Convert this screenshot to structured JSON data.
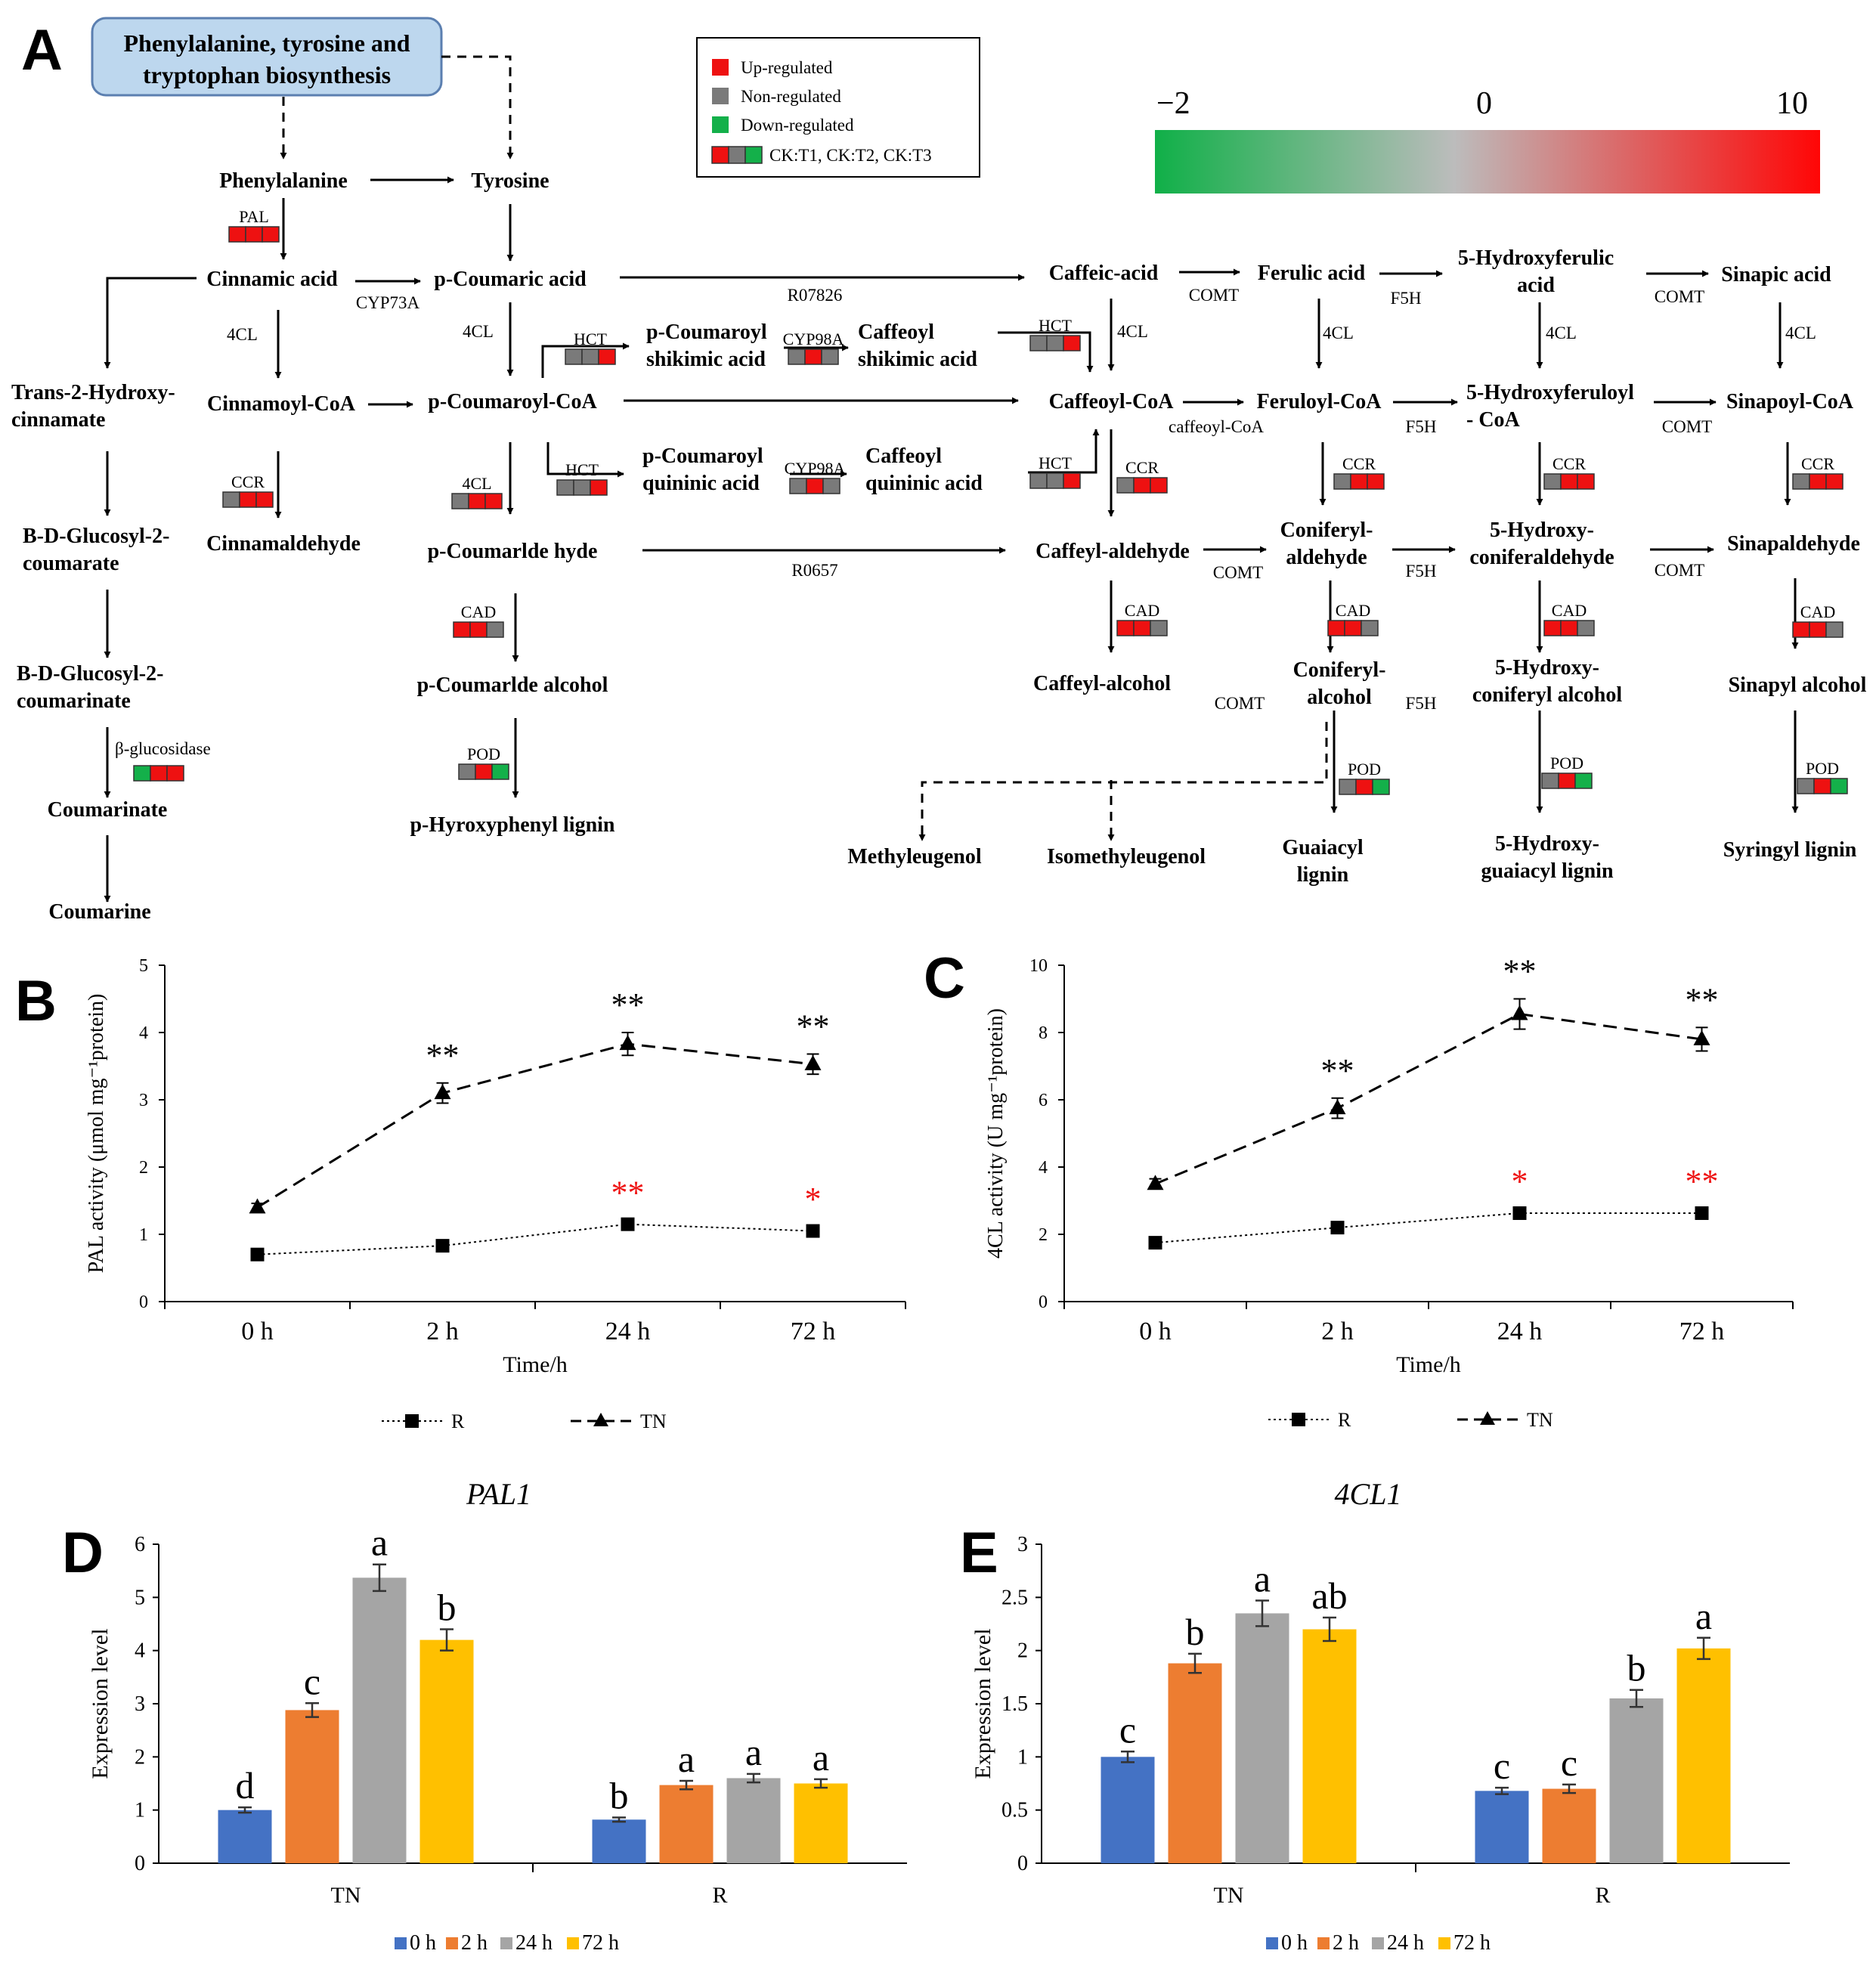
{
  "colors": {
    "up": "#ee1111",
    "non": "#7a7a7a",
    "down": "#14b04a",
    "box_fill": "#bdd7ee",
    "box_stroke": "#5b7fb0",
    "blue": "#4472c4",
    "orange": "#ed7d31",
    "gray": "#a5a5a5",
    "yellow": "#ffc000"
  },
  "panelA": {
    "letter": "A",
    "start_box": [
      "Phenylalanine, tyrosine and",
      "tryptophan biosynthesis"
    ],
    "legend": {
      "up": "Up-regulated",
      "non": "Non-regulated",
      "down": "Down-regulated",
      "triple": "CK:T1, CK:T2, CK:T3"
    },
    "scale": {
      "min": "−2",
      "mid": "0",
      "max": "10"
    },
    "compounds": [
      {
        "id": "phe",
        "lines": [
          "Phenylalanine"
        ]
      },
      {
        "id": "tyr",
        "lines": [
          "Tyrosine"
        ]
      },
      {
        "id": "cin",
        "lines": [
          "Cinnamic acid"
        ]
      },
      {
        "id": "pca",
        "lines": [
          "p-Coumaric acid"
        ]
      },
      {
        "id": "caf",
        "lines": [
          "Caffeic-acid"
        ]
      },
      {
        "id": "fer",
        "lines": [
          "Ferulic acid"
        ]
      },
      {
        "id": "hfer",
        "lines": [
          "5-Hydroxyferulic",
          "acid"
        ]
      },
      {
        "id": "sin",
        "lines": [
          "Sinapic acid"
        ]
      },
      {
        "id": "t2h",
        "lines": [
          "Trans-2-Hydroxy-",
          "cinnamate"
        ]
      },
      {
        "id": "cincoa",
        "lines": [
          "Cinnamoyl-CoA"
        ]
      },
      {
        "id": "pcoa",
        "lines": [
          "p-Coumaroyl-CoA"
        ]
      },
      {
        "id": "pcsa",
        "lines": [
          "p-Coumaroyl",
          "shikimic acid"
        ]
      },
      {
        "id": "cfsa",
        "lines": [
          "Caffeoyl",
          "shikimic acid"
        ]
      },
      {
        "id": "cfcoa",
        "lines": [
          "Caffeoyl-CoA"
        ]
      },
      {
        "id": "fercoa",
        "lines": [
          "Feruloyl-CoA"
        ]
      },
      {
        "id": "hfcoa",
        "lines": [
          "5-Hydroxyferuloyl",
          "- CoA"
        ]
      },
      {
        "id": "sincoa",
        "lines": [
          "Sinapoyl-CoA"
        ]
      },
      {
        "id": "bdg1",
        "lines": [
          "B-D-Glucosyl-2-",
          "coumarate"
        ]
      },
      {
        "id": "cinald",
        "lines": [
          "Cinnamaldehyde"
        ]
      },
      {
        "id": "pcqa",
        "lines": [
          "p-Coumaroyl",
          "quininic acid"
        ]
      },
      {
        "id": "cfqa",
        "lines": [
          "Caffeoyl",
          "quininic acid"
        ]
      },
      {
        "id": "pcald",
        "lines": [
          "p-Coumarlde hyde"
        ]
      },
      {
        "id": "cfald",
        "lines": [
          "Caffeyl-aldehyde"
        ]
      },
      {
        "id": "conald",
        "lines": [
          "Coniferyl-",
          "aldehyde"
        ]
      },
      {
        "id": "hconald",
        "lines": [
          "5-Hydroxy-",
          "coniferaldehyde"
        ]
      },
      {
        "id": "sinald",
        "lines": [
          "Sinapaldehyde"
        ]
      },
      {
        "id": "bdg2",
        "lines": [
          "B-D-Glucosyl-2-",
          "coumarinate"
        ]
      },
      {
        "id": "pcalc",
        "lines": [
          "p-Coumarlde alcohol"
        ]
      },
      {
        "id": "cfalc",
        "lines": [
          "Caffeyl-alcohol"
        ]
      },
      {
        "id": "conalc",
        "lines": [
          "Coniferyl-",
          "alcohol"
        ]
      },
      {
        "id": "hconalc",
        "lines": [
          "5-Hydroxy-",
          "coniferyl alcohol"
        ]
      },
      {
        "id": "sinalc",
        "lines": [
          "Sinapyl alcohol"
        ]
      },
      {
        "id": "coumt",
        "lines": [
          "Coumarinate"
        ]
      },
      {
        "id": "phlig",
        "lines": [
          "p-Hyroxyphenyl lignin"
        ]
      },
      {
        "id": "meth",
        "lines": [
          "Methyleugenol"
        ]
      },
      {
        "id": "isom",
        "lines": [
          "Isomethyleugenol"
        ]
      },
      {
        "id": "gualig",
        "lines": [
          "Guaiacyl",
          "lignin"
        ]
      },
      {
        "id": "hgualig",
        "lines": [
          "5-Hydroxy-",
          "guaiacyl lignin"
        ]
      },
      {
        "id": "syrlig",
        "lines": [
          "Syringyl lignin"
        ]
      },
      {
        "id": "coum",
        "lines": [
          "Coumarine"
        ]
      }
    ],
    "enzymes": [
      {
        "id": "e1",
        "t": "CYP73A"
      },
      {
        "id": "e2",
        "t": "R07826"
      },
      {
        "id": "e3",
        "t": "COMT"
      },
      {
        "id": "e4",
        "t": "F5H"
      },
      {
        "id": "e5",
        "t": "COMT"
      },
      {
        "id": "e6",
        "t": "4CL"
      },
      {
        "id": "e7",
        "t": "4CL"
      },
      {
        "id": "e8",
        "t": "4CL"
      },
      {
        "id": "e9",
        "t": "4CL"
      },
      {
        "id": "e10",
        "t": "4CL"
      },
      {
        "id": "e11",
        "t": "4CL"
      },
      {
        "id": "e12",
        "t": "caffeoyl-CoA"
      },
      {
        "id": "e13",
        "t": "F5H"
      },
      {
        "id": "e14",
        "t": "COMT"
      },
      {
        "id": "e15",
        "t": "R0657"
      },
      {
        "id": "e16",
        "t": "COMT"
      },
      {
        "id": "e17",
        "t": "F5H"
      },
      {
        "id": "e18",
        "t": "COMT"
      },
      {
        "id": "e19",
        "t": "COMT"
      },
      {
        "id": "e20",
        "t": "F5H"
      },
      {
        "id": "e21",
        "t": "β-glucosidase"
      }
    ],
    "gene_boxes": [
      {
        "id": "g1",
        "label": "PAL",
        "cells": [
          "up",
          "up",
          "up"
        ]
      },
      {
        "id": "g2",
        "label": "HCT",
        "cells": [
          "non",
          "non",
          "up"
        ]
      },
      {
        "id": "g3",
        "label": "CYP98A",
        "cells": [
          "non",
          "up",
          "non"
        ]
      },
      {
        "id": "g4",
        "label": "HCT",
        "cells": [
          "non",
          "non",
          "up"
        ]
      },
      {
        "id": "g5",
        "label": "HCT",
        "cells": [
          "non",
          "non",
          "up"
        ]
      },
      {
        "id": "g6",
        "label": "CYP98A",
        "cells": [
          "non",
          "up",
          "non"
        ]
      },
      {
        "id": "g7",
        "label": "HCT",
        "cells": [
          "non",
          "non",
          "up"
        ]
      },
      {
        "id": "g8",
        "label": "CCR",
        "cells": [
          "non",
          "up",
          "up"
        ]
      },
      {
        "id": "g9",
        "label": "4CL",
        "cells": [
          "non",
          "up",
          "up"
        ]
      },
      {
        "id": "g10",
        "label": "CCR",
        "cells": [
          "non",
          "up",
          "up"
        ]
      },
      {
        "id": "g11",
        "label": "CCR",
        "cells": [
          "non",
          "up",
          "up"
        ]
      },
      {
        "id": "g12",
        "label": "CCR",
        "cells": [
          "non",
          "up",
          "up"
        ]
      },
      {
        "id": "g13",
        "label": "CCR",
        "cells": [
          "non",
          "up",
          "up"
        ]
      },
      {
        "id": "g14",
        "label": "CAD",
        "cells": [
          "up",
          "up",
          "non"
        ]
      },
      {
        "id": "g15",
        "label": "CAD",
        "cells": [
          "up",
          "up",
          "non"
        ]
      },
      {
        "id": "g16",
        "label": "CAD",
        "cells": [
          "up",
          "up",
          "non"
        ]
      },
      {
        "id": "g17",
        "label": "CAD",
        "cells": [
          "up",
          "up",
          "non"
        ]
      },
      {
        "id": "g18",
        "label": "CAD",
        "cells": [
          "up",
          "up",
          "non"
        ]
      },
      {
        "id": "g19",
        "label": "β-glucosidase",
        "cells": [
          "down",
          "up",
          "up"
        ],
        "nolabel": true
      },
      {
        "id": "g20",
        "label": "POD",
        "cells": [
          "non",
          "up",
          "down"
        ]
      },
      {
        "id": "g21",
        "label": "POD",
        "cells": [
          "non",
          "up",
          "down"
        ]
      },
      {
        "id": "g22",
        "label": "POD",
        "cells": [
          "non",
          "up",
          "down"
        ]
      },
      {
        "id": "g23",
        "label": "POD",
        "cells": [
          "non",
          "up",
          "down"
        ]
      }
    ]
  },
  "panelB": {
    "letter": "B",
    "chart_data": {
      "type": "line",
      "categories": [
        "0 h",
        "2 h",
        "24 h",
        "72 h"
      ],
      "series": [
        {
          "name": "R",
          "values": [
            0.7,
            0.83,
            1.15,
            1.05
          ],
          "errors": [
            0.05,
            0.05,
            0.06,
            0.06
          ],
          "marks": [
            "",
            "",
            "**",
            "*"
          ]
        },
        {
          "name": "TN",
          "values": [
            1.4,
            3.1,
            3.83,
            3.53
          ],
          "errors": [
            0.06,
            0.15,
            0.17,
            0.15
          ],
          "marks": [
            "",
            "**",
            "**",
            "**"
          ]
        }
      ],
      "ylim": [
        0,
        5
      ],
      "yticks": [
        "0",
        "1",
        "2",
        "3",
        "4",
        "5"
      ],
      "xlabel": "Time/h",
      "ylabel": "PAL activity (μmol mg⁻¹protein)"
    }
  },
  "panelC": {
    "letter": "C",
    "chart_data": {
      "type": "line",
      "categories": [
        "0 h",
        "2 h",
        "24 h",
        "72 h"
      ],
      "series": [
        {
          "name": "R",
          "values": [
            1.75,
            2.2,
            2.63,
            2.63
          ],
          "errors": [
            0.1,
            0.12,
            0.12,
            0.12
          ],
          "marks": [
            "",
            "",
            "*",
            "**"
          ]
        },
        {
          "name": "TN",
          "values": [
            3.5,
            5.75,
            8.55,
            7.8
          ],
          "errors": [
            0.15,
            0.3,
            0.45,
            0.35
          ],
          "marks": [
            "",
            "**",
            "**",
            "**"
          ]
        }
      ],
      "ylim": [
        0,
        10
      ],
      "yticks": [
        "0",
        "2",
        "4",
        "6",
        "8",
        "10"
      ],
      "xlabel": "Time/h",
      "ylabel": "4CL activity  (U mg⁻¹protein)"
    }
  },
  "panelD": {
    "letter": "D",
    "chart_data": {
      "type": "bar",
      "title": "PAL1",
      "categories": [
        "TN",
        "R"
      ],
      "series": [
        {
          "name": "0 h",
          "values": [
            1.0,
            0.82
          ],
          "errors": [
            0.05,
            0.04
          ],
          "letters": [
            "d",
            "b"
          ]
        },
        {
          "name": "2 h",
          "values": [
            2.88,
            1.47
          ],
          "errors": [
            0.13,
            0.08
          ],
          "letters": [
            "c",
            "a"
          ]
        },
        {
          "name": "24 h",
          "values": [
            5.37,
            1.6
          ],
          "errors": [
            0.25,
            0.08
          ],
          "letters": [
            "a",
            "a"
          ]
        },
        {
          "name": "72 h",
          "values": [
            4.2,
            1.5
          ],
          "errors": [
            0.2,
            0.08
          ],
          "letters": [
            "b",
            "a"
          ]
        }
      ],
      "ylim": [
        0,
        6
      ],
      "yticks": [
        "0",
        "1",
        "2",
        "3",
        "4",
        "5",
        "6"
      ],
      "ylabel": "Expression level"
    }
  },
  "panelE": {
    "letter": "E",
    "chart_data": {
      "type": "bar",
      "title": "4CL1",
      "categories": [
        "TN",
        "R"
      ],
      "series": [
        {
          "name": "0 h",
          "values": [
            1.0,
            0.68
          ],
          "errors": [
            0.05,
            0.03
          ],
          "letters": [
            "c",
            "c"
          ]
        },
        {
          "name": "2 h",
          "values": [
            1.88,
            0.7
          ],
          "errors": [
            0.09,
            0.04
          ],
          "letters": [
            "b",
            "c"
          ]
        },
        {
          "name": "24 h",
          "values": [
            2.35,
            1.55
          ],
          "errors": [
            0.12,
            0.08
          ],
          "letters": [
            "a",
            "b"
          ]
        },
        {
          "name": "72 h",
          "values": [
            2.2,
            2.02
          ],
          "errors": [
            0.11,
            0.1
          ],
          "letters": [
            "ab",
            "a"
          ]
        }
      ],
      "ylim": [
        0,
        3
      ],
      "yticks": [
        "0",
        "0.5",
        "1",
        "1.5",
        "2",
        "2.5",
        "3"
      ],
      "ylabel": "Expression level"
    }
  }
}
